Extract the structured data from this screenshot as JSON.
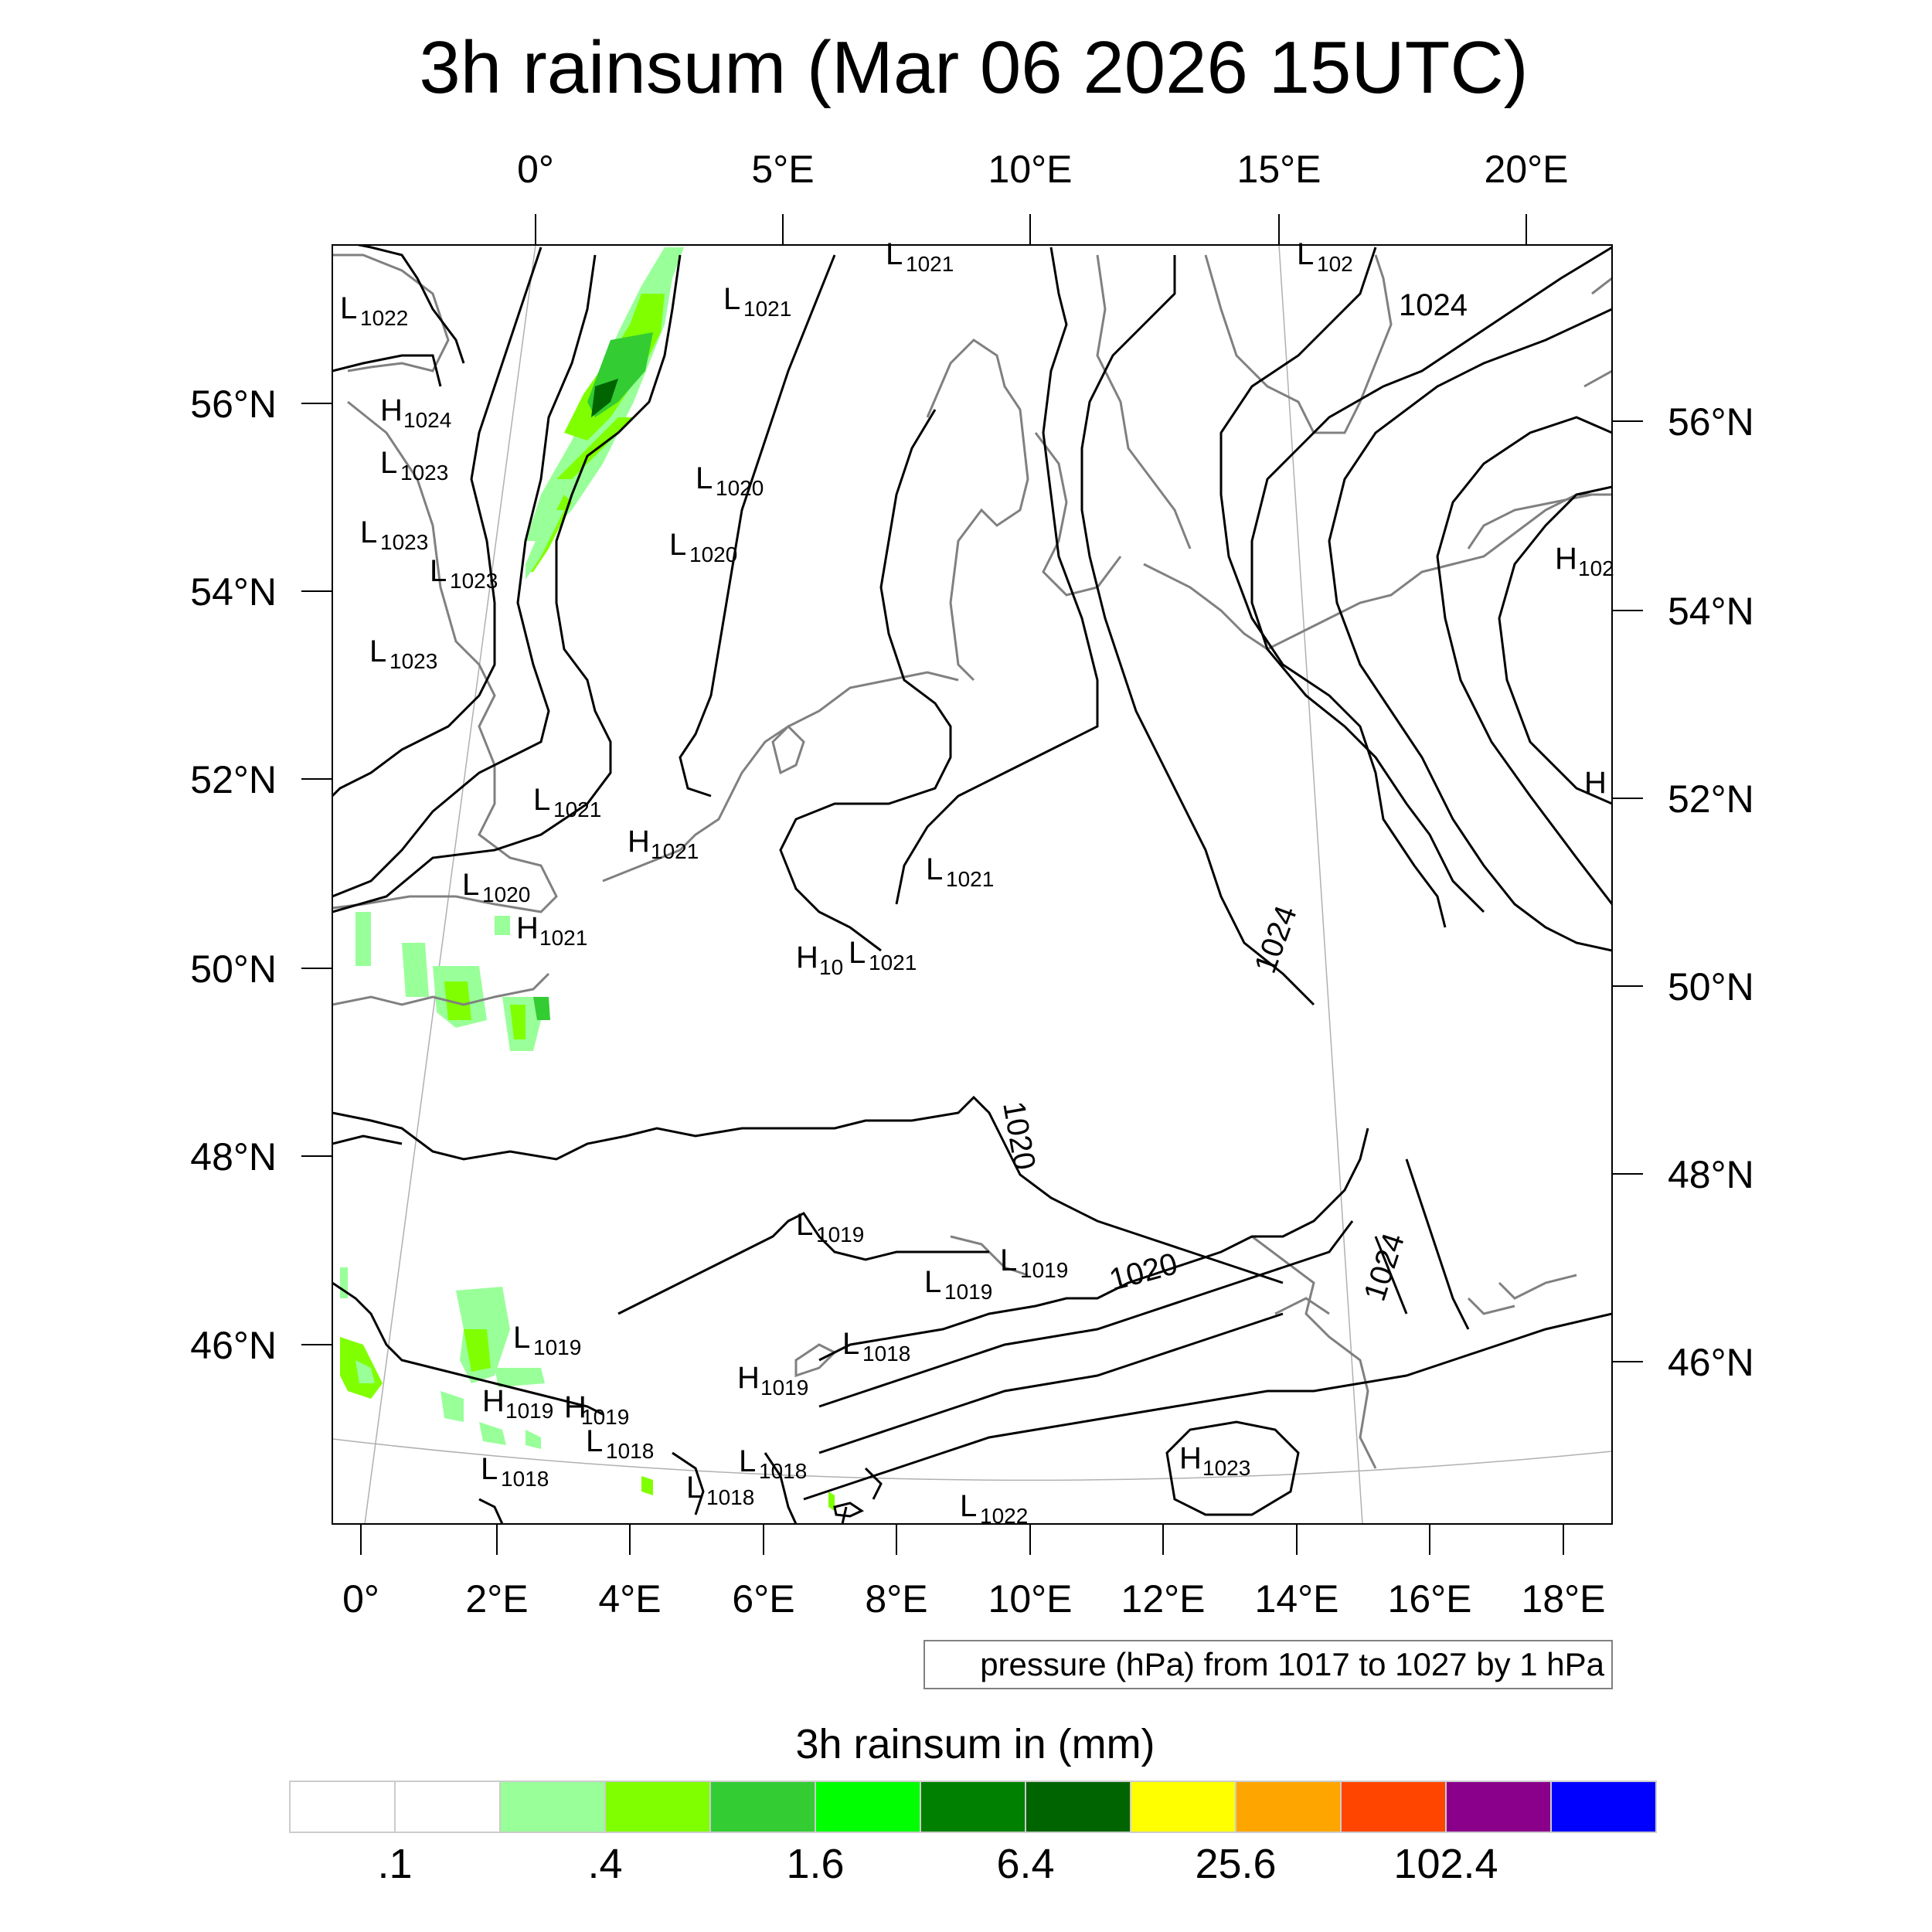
{
  "title": "3h rainsum (Mar 06 2026 15UTC)",
  "top_lon_labels": [
    "0°",
    "5°E",
    "10°E",
    "15°E",
    "20°E"
  ],
  "bottom_lon_labels": [
    "0°",
    "2°E",
    "4°E",
    "6°E",
    "8°E",
    "10°E",
    "12°E",
    "14°E",
    "16°E",
    "18°E"
  ],
  "left_lat_labels": [
    "56°N",
    "54°N",
    "52°N",
    "50°N",
    "48°N",
    "46°N"
  ],
  "right_lat_labels": [
    "56°N",
    "54°N",
    "52°N",
    "50°N",
    "48°N",
    "46°N"
  ],
  "contour_note": "pressure (hPa) from 1017 to 1027 by 1 hPa",
  "colorbar": {
    "title": "3h rainsum in (mm)",
    "colors": [
      "#ffffff",
      "#ffffff",
      "#99ff99",
      "#80ff00",
      "#33cc33",
      "#00ff00",
      "#008000",
      "#006400",
      "#ffff00",
      "#ffa500",
      "#ff4500",
      "#8b008b",
      "#0000ff"
    ],
    "labels": [
      ".1",
      ".4",
      "1.6",
      "6.4",
      "25.6",
      "102.4"
    ]
  },
  "pressure_labels": [
    {
      "t": "L",
      "v": "1022"
    },
    {
      "t": "H",
      "v": "1024"
    },
    {
      "t": "L",
      "v": "1023"
    },
    {
      "t": "L",
      "v": "1023"
    },
    {
      "t": "L",
      "v": "1023"
    },
    {
      "t": "L",
      "v": "1023"
    },
    {
      "t": "L",
      "v": "1021"
    },
    {
      "t": "L",
      "v": "1021"
    },
    {
      "t": "L",
      "v": "1020"
    },
    {
      "t": "L",
      "v": "1020"
    },
    {
      "t": "L",
      "v": "102"
    },
    {
      "t": "L",
      "v": "1021"
    },
    {
      "t": "H",
      "v": "1021"
    },
    {
      "t": "L",
      "v": "1020"
    },
    {
      "t": "H",
      "v": "1021"
    },
    {
      "t": "L",
      "v": "1021"
    },
    {
      "t": "H",
      "v": "10"
    },
    {
      "t": "L",
      "v": "1021"
    },
    {
      "t": "H",
      "v": "102"
    },
    {
      "t": "H",
      "v": ""
    },
    {
      "t": "L",
      "v": "1019"
    },
    {
      "t": "L",
      "v": "1019"
    },
    {
      "t": "L",
      "v": "1019"
    },
    {
      "t": "L",
      "v": "1019"
    },
    {
      "t": "L",
      "v": "1018"
    },
    {
      "t": "H",
      "v": "1019"
    },
    {
      "t": "H",
      "v": "1019"
    },
    {
      "t": "H",
      "v": "1019"
    },
    {
      "t": "L",
      "v": "1018"
    },
    {
      "t": "L",
      "v": "1018"
    },
    {
      "t": "L",
      "v": "1018"
    },
    {
      "t": "L",
      "v": "1018"
    },
    {
      "t": "H",
      "v": "1023"
    },
    {
      "t": "L",
      "v": "1022"
    }
  ],
  "isobar_labels": [
    "1024",
    "1024",
    "1020",
    "1020",
    "1024"
  ]
}
